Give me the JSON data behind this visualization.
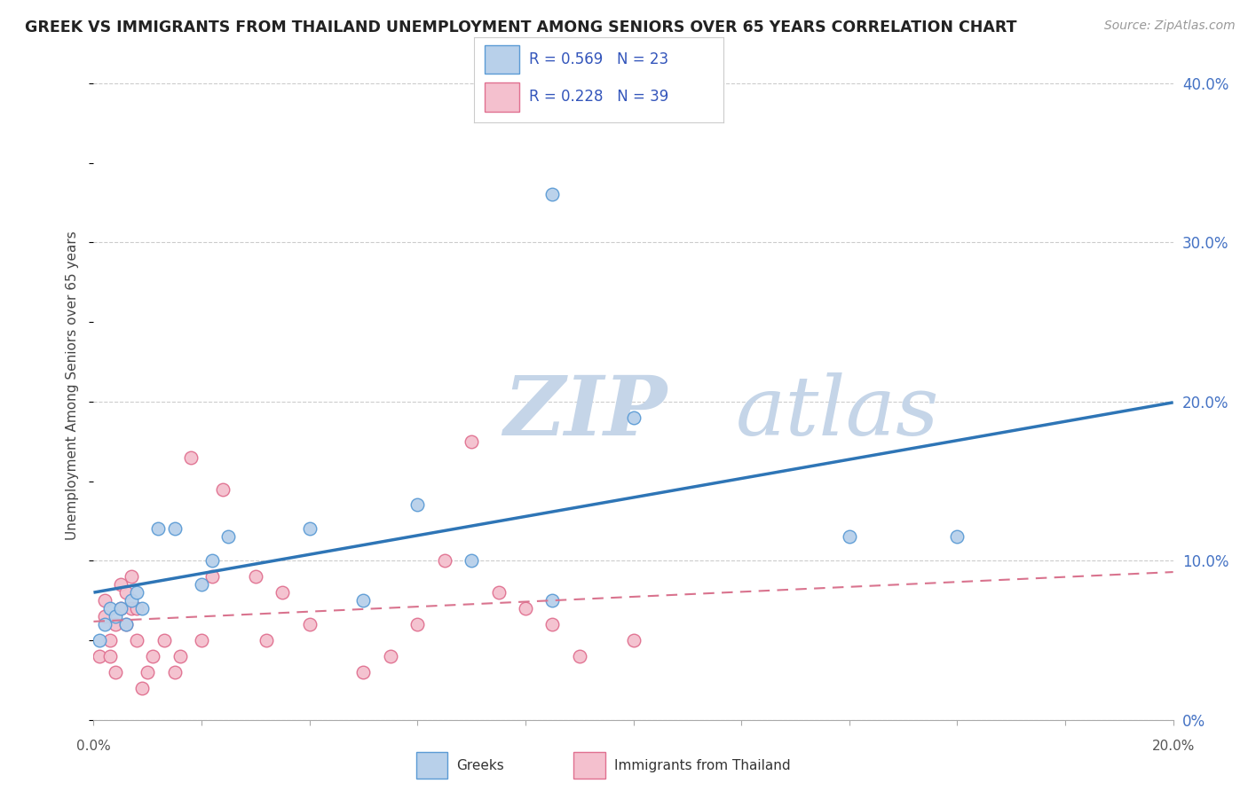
{
  "title": "GREEK VS IMMIGRANTS FROM THAILAND UNEMPLOYMENT AMONG SENIORS OVER 65 YEARS CORRELATION CHART",
  "source": "Source: ZipAtlas.com",
  "ylabel": "Unemployment Among Seniors over 65 years",
  "greeks_R": 0.569,
  "greeks_N": 23,
  "thailand_R": 0.228,
  "thailand_N": 39,
  "greeks_color": "#b8d0ea",
  "greeks_edge_color": "#5b9bd5",
  "greeks_line_color": "#2e75b6",
  "thailand_color": "#f4c0ce",
  "thailand_edge_color": "#e07090",
  "thailand_line_color": "#d9738e",
  "legend_text_color": "#3355bb",
  "right_label_color": "#4472c4",
  "greeks_x": [
    0.001,
    0.002,
    0.003,
    0.004,
    0.005,
    0.006,
    0.007,
    0.008,
    0.009,
    0.012,
    0.015,
    0.02,
    0.022,
    0.025,
    0.04,
    0.05,
    0.06,
    0.07,
    0.085,
    0.1,
    0.14,
    0.16,
    0.085
  ],
  "greeks_y": [
    0.05,
    0.06,
    0.07,
    0.065,
    0.07,
    0.06,
    0.075,
    0.08,
    0.07,
    0.12,
    0.12,
    0.085,
    0.1,
    0.115,
    0.12,
    0.075,
    0.135,
    0.1,
    0.075,
    0.19,
    0.115,
    0.115,
    0.33
  ],
  "thailand_x": [
    0.001,
    0.002,
    0.002,
    0.003,
    0.003,
    0.004,
    0.004,
    0.005,
    0.005,
    0.006,
    0.006,
    0.007,
    0.007,
    0.008,
    0.008,
    0.009,
    0.01,
    0.011,
    0.013,
    0.015,
    0.016,
    0.018,
    0.02,
    0.022,
    0.024,
    0.03,
    0.032,
    0.035,
    0.04,
    0.05,
    0.055,
    0.06,
    0.065,
    0.07,
    0.075,
    0.08,
    0.085,
    0.09,
    0.1
  ],
  "thailand_y": [
    0.04,
    0.065,
    0.075,
    0.04,
    0.05,
    0.03,
    0.06,
    0.07,
    0.085,
    0.06,
    0.08,
    0.07,
    0.09,
    0.05,
    0.07,
    0.02,
    0.03,
    0.04,
    0.05,
    0.03,
    0.04,
    0.165,
    0.05,
    0.09,
    0.145,
    0.09,
    0.05,
    0.08,
    0.06,
    0.03,
    0.04,
    0.06,
    0.1,
    0.175,
    0.08,
    0.07,
    0.06,
    0.04,
    0.05
  ],
  "xlim": [
    0.0,
    0.2
  ],
  "ylim": [
    0.0,
    0.42
  ],
  "right_yticks": [
    0.0,
    0.1,
    0.2,
    0.3,
    0.4
  ],
  "right_ylabels": [
    "0%",
    "10.0%",
    "20.0%",
    "30.0%",
    "40.0%"
  ],
  "background_color": "#ffffff",
  "grid_color": "#cccccc",
  "watermark_zip_color": "#c5d5e8",
  "watermark_atlas_color": "#c5d5e8"
}
